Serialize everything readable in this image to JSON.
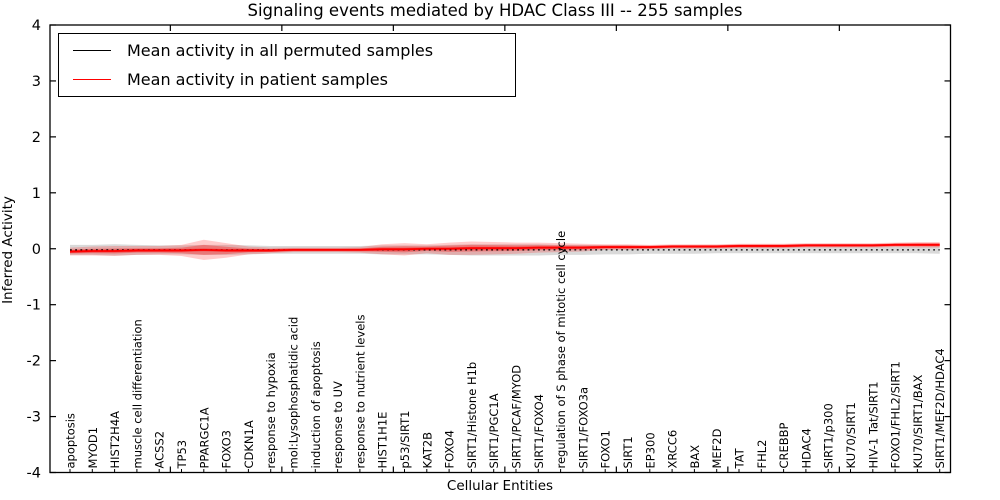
{
  "chart_data": {
    "type": "line",
    "title": "Signaling events mediated by HDAC Class III -- 255 samples",
    "xlabel": "Cellular Entities",
    "ylabel": "Inferred Activity",
    "ylim": [
      -4,
      4
    ],
    "yticks": [
      4,
      3,
      2,
      1,
      0,
      -1,
      -2,
      -3,
      -4
    ],
    "grid": false,
    "legend_position": "upper left",
    "categories": [
      "apoptosis",
      "MYOD1",
      "HIST2H4A",
      "muscle cell differentiation",
      "ACSS2",
      "TP53",
      "PPARGC1A",
      "FOXO3",
      "CDKN1A",
      "response to hypoxia",
      "mol:Lysophosphatidic acid",
      "induction of apoptosis",
      "response to UV",
      "response to nutrient levels",
      "HIST1H1E",
      "p53/SIRT1",
      "KAT2B",
      "FOXO4",
      "SIRT1/Histone H1b",
      "SIRT1/PGC1A",
      "SIRT1/PCAF/MYOD",
      "SIRT1/FOXO4",
      "regulation of S phase of mitotic cell cycle",
      "SIRT1/FOXO3a",
      "FOXO1",
      "SIRT1",
      "EP300",
      "XRCC6",
      "BAX",
      "MEF2D",
      "TAT",
      "FHL2",
      "CREBBP",
      "HDAC4",
      "SIRT1/p300",
      "KU70/SIRT1",
      "HIV-1 Tat/SIRT1",
      "FOXO1/FHL2/SIRT1",
      "KU70/SIRT1/BAX",
      "SIRT1/MEF2D/HDAC4"
    ],
    "series": [
      {
        "name": "Mean activity in all permuted samples",
        "color": "#000000",
        "line_style": "dotted",
        "values": [
          -0.02,
          -0.02,
          -0.02,
          -0.02,
          -0.02,
          -0.02,
          -0.02,
          -0.02,
          -0.02,
          -0.02,
          -0.02,
          -0.02,
          -0.02,
          -0.02,
          -0.02,
          -0.02,
          -0.02,
          -0.02,
          -0.02,
          -0.02,
          -0.02,
          -0.02,
          -0.02,
          -0.02,
          -0.02,
          -0.02,
          -0.02,
          -0.02,
          -0.02,
          -0.02,
          -0.02,
          -0.02,
          -0.02,
          -0.02,
          -0.02,
          -0.02,
          -0.02,
          -0.02,
          -0.02,
          -0.02
        ],
        "band_halfwidth": [
          0.09,
          0.09,
          0.1,
          0.09,
          0.08,
          0.08,
          0.09,
          0.09,
          0.08,
          0.07,
          0.07,
          0.07,
          0.07,
          0.07,
          0.08,
          0.08,
          0.08,
          0.09,
          0.1,
          0.1,
          0.1,
          0.1,
          0.09,
          0.09,
          0.08,
          0.08,
          0.07,
          0.07,
          0.07,
          0.06,
          0.06,
          0.06,
          0.06,
          0.06,
          0.06,
          0.06,
          0.06,
          0.06,
          0.06,
          0.07
        ],
        "band_color": "#aaaaaa"
      },
      {
        "name": "Mean activity in patient samples",
        "color": "#ff0000",
        "line_style": "solid",
        "values": [
          -0.05,
          -0.04,
          -0.04,
          -0.03,
          -0.03,
          -0.03,
          -0.02,
          -0.03,
          -0.03,
          -0.03,
          -0.02,
          -0.02,
          -0.02,
          -0.02,
          -0.01,
          -0.01,
          0.0,
          0.0,
          0.01,
          0.01,
          0.01,
          0.02,
          0.02,
          0.02,
          0.03,
          0.03,
          0.03,
          0.04,
          0.04,
          0.04,
          0.05,
          0.05,
          0.05,
          0.06,
          0.06,
          0.06,
          0.06,
          0.07,
          0.07,
          0.07
        ],
        "band_halfwidth": [
          0.07,
          0.08,
          0.09,
          0.08,
          0.08,
          0.1,
          0.18,
          0.13,
          0.07,
          0.05,
          0.04,
          0.04,
          0.04,
          0.05,
          0.09,
          0.11,
          0.08,
          0.11,
          0.12,
          0.11,
          0.1,
          0.09,
          0.08,
          0.07,
          0.05,
          0.05,
          0.04,
          0.04,
          0.04,
          0.04,
          0.04,
          0.04,
          0.04,
          0.04,
          0.04,
          0.04,
          0.04,
          0.04,
          0.05,
          0.05
        ],
        "band_color": "#ff0000"
      }
    ]
  }
}
